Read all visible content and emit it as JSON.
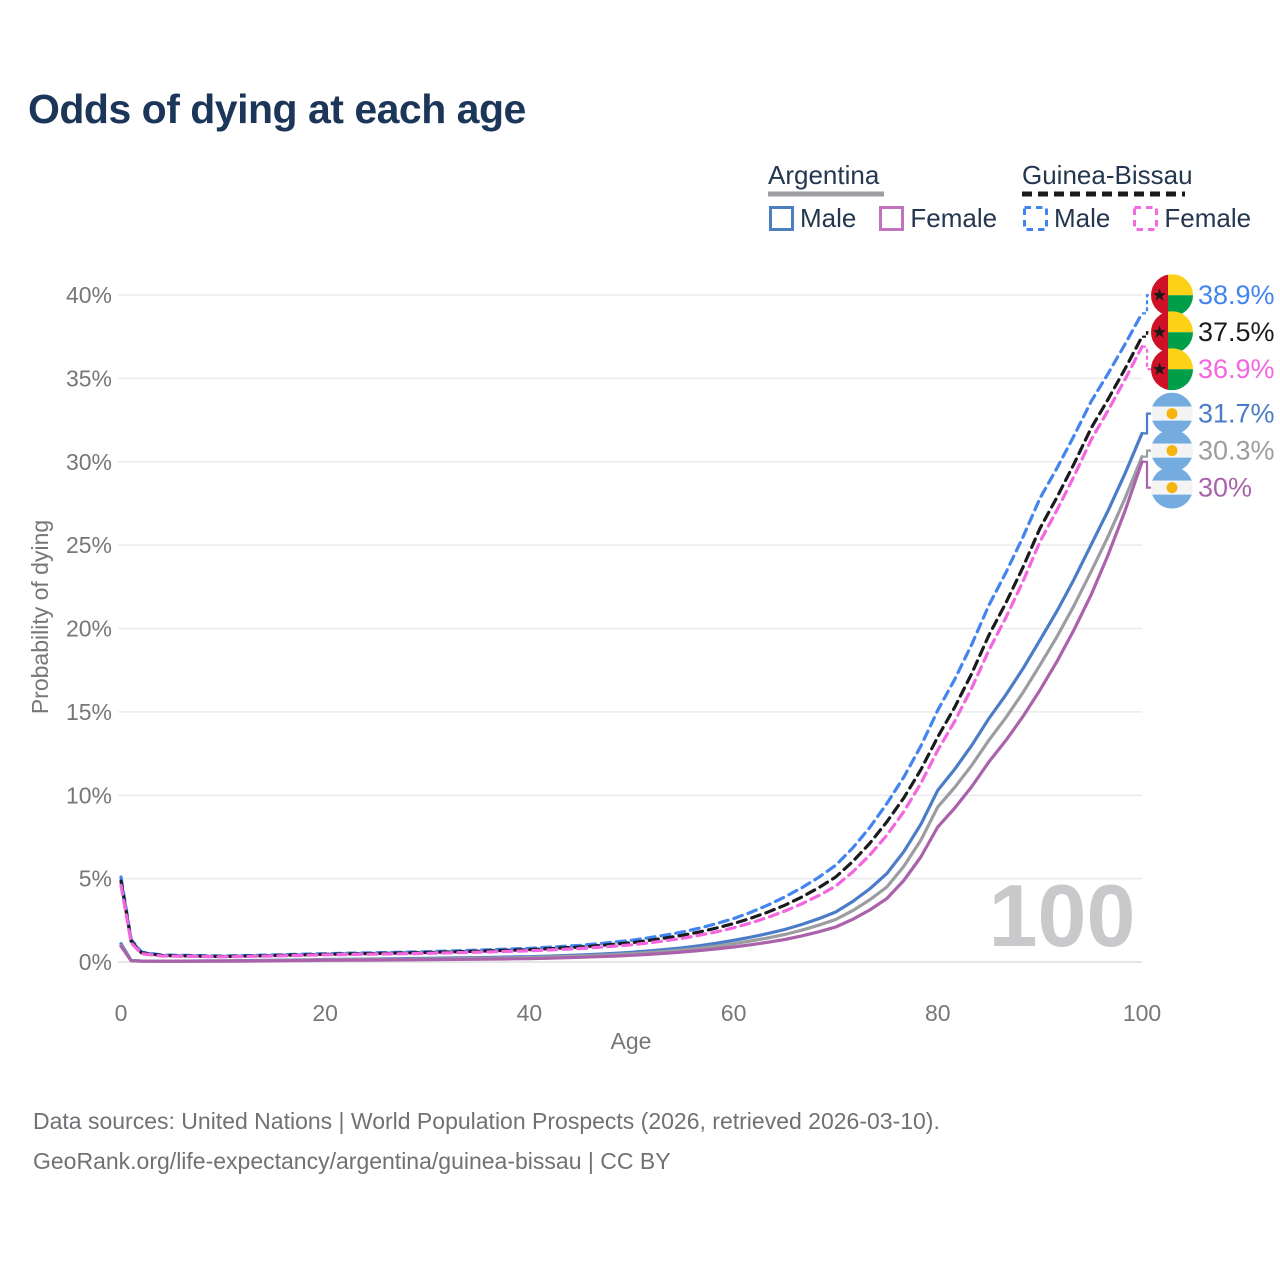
{
  "title": "Odds of dying at each age",
  "legend": {
    "groups": [
      {
        "label": "Argentina",
        "line_style": "solid",
        "line_color": "#9e9ea2",
        "items": [
          {
            "label": "Male",
            "color": "#4d7fc0",
            "style": "solid"
          },
          {
            "label": "Female",
            "color": "#c273bd",
            "style": "solid"
          }
        ]
      },
      {
        "label": "Guinea-Bissau",
        "line_style": "dashed",
        "line_color": "#1b1b1f",
        "items": [
          {
            "label": "Male",
            "color": "#4285f0",
            "style": "dashed"
          },
          {
            "label": "Female",
            "color": "#f56ae0",
            "style": "dashed"
          }
        ]
      }
    ]
  },
  "chart_data": {
    "type": "line",
    "title": "Odds of dying at each age",
    "xlabel": "Age",
    "ylabel": "Probability of dying",
    "xlim": [
      0,
      100
    ],
    "ylim": [
      0,
      40
    ],
    "xticks": [
      0,
      20,
      40,
      60,
      80,
      100
    ],
    "yticks": [
      0,
      5,
      10,
      15,
      20,
      25,
      30,
      35,
      40
    ],
    "ytick_suffix": "%",
    "grid": "horizontal-only",
    "legend_position": "top-right",
    "age_watermark": "100",
    "ages": [
      0,
      1,
      2,
      4,
      10,
      20,
      30,
      40,
      45,
      50,
      55,
      60,
      65,
      70,
      75,
      80,
      85,
      90,
      95,
      100
    ],
    "series": [
      {
        "id": "argentina-male",
        "name": "Argentina Male",
        "country": "Argentina",
        "sex": "male",
        "color": "#4a7cc8",
        "dashed": false,
        "end_value": 31.7,
        "end_label": "31.7%",
        "ages": [
          0,
          1,
          2,
          4,
          10,
          20,
          30,
          40,
          45,
          50,
          55,
          60,
          65,
          70,
          75,
          80,
          85,
          90,
          95,
          100
        ],
        "values": [
          1.1,
          0.09,
          0.06,
          0.05,
          0.07,
          0.15,
          0.22,
          0.32,
          0.42,
          0.58,
          0.85,
          1.3,
          1.95,
          3.0,
          5.3,
          10.3,
          14.6,
          19.3,
          25.0,
          31.7
        ]
      },
      {
        "id": "argentina-both",
        "name": "Argentina Both sexes",
        "country": "Argentina",
        "sex": "both",
        "color": "#9b9da1",
        "dashed": false,
        "end_value": 30.3,
        "end_label": "30.3%",
        "ages": [
          0,
          1,
          2,
          4,
          10,
          20,
          30,
          40,
          45,
          50,
          55,
          60,
          65,
          70,
          75,
          80,
          85,
          90,
          95,
          100
        ],
        "values": [
          1.0,
          0.08,
          0.055,
          0.045,
          0.06,
          0.13,
          0.18,
          0.27,
          0.36,
          0.5,
          0.72,
          1.1,
          1.65,
          2.55,
          4.5,
          9.3,
          13.3,
          17.8,
          23.4,
          30.3
        ]
      },
      {
        "id": "argentina-female",
        "name": "Argentina Female",
        "country": "Argentina",
        "sex": "female",
        "color": "#aa63ab",
        "dashed": false,
        "end_value": 30.0,
        "end_label": "30%",
        "ages": [
          0,
          1,
          2,
          4,
          10,
          20,
          30,
          40,
          45,
          50,
          55,
          60,
          65,
          70,
          75,
          80,
          85,
          90,
          95,
          100
        ],
        "values": [
          0.95,
          0.07,
          0.05,
          0.04,
          0.05,
          0.1,
          0.14,
          0.2,
          0.28,
          0.4,
          0.6,
          0.9,
          1.35,
          2.1,
          3.8,
          8.1,
          12.0,
          16.3,
          22.0,
          30.0
        ]
      },
      {
        "id": "guinea-bissau-male",
        "name": "Guinea-Bissau Male",
        "country": "Guinea-Bissau",
        "sex": "male",
        "color": "#4285f0",
        "dashed": true,
        "end_value": 38.9,
        "end_label": "38.9%",
        "ages": [
          0,
          1,
          2,
          4,
          10,
          20,
          30,
          40,
          45,
          50,
          55,
          60,
          65,
          70,
          75,
          80,
          85,
          90,
          95,
          100
        ],
        "values": [
          5.1,
          1.35,
          0.6,
          0.42,
          0.36,
          0.5,
          0.62,
          0.82,
          1.0,
          1.3,
          1.8,
          2.6,
          3.9,
          5.8,
          9.5,
          15.1,
          21.4,
          27.8,
          33.6,
          38.9
        ]
      },
      {
        "id": "guinea-bissau-both",
        "name": "Guinea-Bissau Both sexes",
        "country": "Guinea-Bissau",
        "sex": "both",
        "color": "#1b1b1f",
        "dashed": true,
        "end_value": 37.5,
        "end_label": "37.5%",
        "ages": [
          0,
          1,
          2,
          4,
          10,
          20,
          30,
          40,
          45,
          50,
          55,
          60,
          65,
          70,
          75,
          80,
          85,
          90,
          95,
          100
        ],
        "values": [
          4.85,
          1.25,
          0.55,
          0.39,
          0.33,
          0.46,
          0.57,
          0.74,
          0.9,
          1.16,
          1.6,
          2.3,
          3.4,
          5.1,
          8.4,
          13.5,
          19.6,
          26.0,
          32.0,
          37.5
        ]
      },
      {
        "id": "guinea-bissau-female",
        "name": "Guinea-Bissau Female",
        "country": "Guinea-Bissau",
        "sex": "female",
        "color": "#f466e0",
        "dashed": true,
        "end_value": 36.9,
        "end_label": "36.9%",
        "ages": [
          0,
          1,
          2,
          4,
          10,
          20,
          30,
          40,
          45,
          50,
          55,
          60,
          65,
          70,
          75,
          80,
          85,
          90,
          95,
          100
        ],
        "values": [
          4.6,
          1.15,
          0.5,
          0.36,
          0.31,
          0.43,
          0.52,
          0.67,
          0.81,
          1.03,
          1.42,
          2.05,
          3.05,
          4.55,
          7.6,
          12.7,
          18.7,
          25.2,
          31.3,
          36.9
        ]
      }
    ]
  },
  "flags": {
    "argentina": {
      "icon": "argentina-flag-icon",
      "blue": "#74acdf",
      "white": "#f4f4f4",
      "sun": "#f6b40e"
    },
    "guinea_bissau": {
      "icon": "guinea-bissau-flag-icon",
      "red": "#ce1126",
      "yellow": "#fcd116",
      "green": "#009e49",
      "star": "#1a1a1a"
    }
  },
  "footer": {
    "line1": "Data sources: United Nations | World Population Prospects (2026, retrieved 2026-03-10).",
    "line2": "GeoRank.org/life-expectancy/argentina/guinea-bissau | CC BY"
  }
}
